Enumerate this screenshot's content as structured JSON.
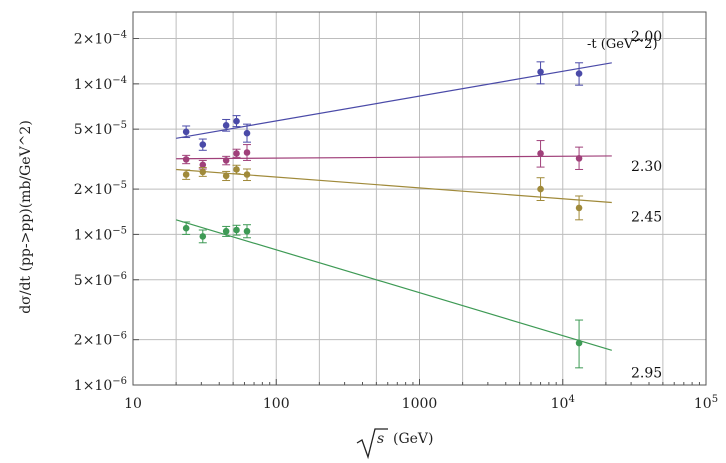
{
  "chart_data": {
    "type": "scatter",
    "title": "",
    "xlabel": "√s (GeV)",
    "ylabel": "dσ/dt (pp->pp)(mb/GeV^2)",
    "xscale": "log",
    "yscale": "log",
    "xlim": [
      10,
      100000
    ],
    "ylim": [
      1e-06,
      0.0003
    ],
    "grid": true,
    "legend_title": "-t (GeV^2)",
    "x_ticks": [
      {
        "value": 10,
        "label": "10"
      },
      {
        "value": 100,
        "label": "100"
      },
      {
        "value": 1000,
        "label": "1000"
      },
      {
        "value": 10000,
        "label": "10",
        "exp": "4"
      },
      {
        "value": 100000,
        "label": "10",
        "exp": "5"
      }
    ],
    "y_ticks": [
      {
        "value": 1e-06,
        "label": "1×10",
        "exp": "−6"
      },
      {
        "value": 2e-06,
        "label": "2×10",
        "exp": "−6"
      },
      {
        "value": 5e-06,
        "label": "5×10",
        "exp": "−6"
      },
      {
        "value": 1e-05,
        "label": "1×10",
        "exp": "−5"
      },
      {
        "value": 2e-05,
        "label": "2×10",
        "exp": "−5"
      },
      {
        "value": 5e-05,
        "label": "5×10",
        "exp": "−5"
      },
      {
        "value": 0.0001,
        "label": "1×10",
        "exp": "−4"
      },
      {
        "value": 0.0002,
        "label": "2×10",
        "exp": "−4"
      }
    ],
    "series": [
      {
        "name": "2.00",
        "color": "#4a4aa8",
        "points": [
          {
            "x": 23.5,
            "y": 4.8e-05,
            "lo": 4.4e-05,
            "hi": 5.25e-05
          },
          {
            "x": 30.7,
            "y": 3.95e-05,
            "lo": 3.62e-05,
            "hi": 4.3e-05
          },
          {
            "x": 44.7,
            "y": 5.3e-05,
            "lo": 4.85e-05,
            "hi": 5.8e-05
          },
          {
            "x": 52.8,
            "y": 5.65e-05,
            "lo": 5.2e-05,
            "hi": 6.15e-05
          },
          {
            "x": 62.5,
            "y": 4.7e-05,
            "lo": 4.1e-05,
            "hi": 5.4e-05
          },
          {
            "x": 7000,
            "y": 0.00012,
            "lo": 0.0001,
            "hi": 0.00014
          },
          {
            "x": 13000,
            "y": 0.000117,
            "lo": 9.8e-05,
            "hi": 0.000138
          }
        ],
        "fit": {
          "x": [
            20,
            22000
          ],
          "y": [
            4.35e-05,
            0.000138
          ]
        }
      },
      {
        "name": "2.30",
        "color": "#a0407a",
        "points": [
          {
            "x": 23.5,
            "y": 3.15e-05,
            "lo": 2.95e-05,
            "hi": 3.35e-05
          },
          {
            "x": 30.7,
            "y": 2.9e-05,
            "lo": 2.72e-05,
            "hi": 3.1e-05
          },
          {
            "x": 44.7,
            "y": 3.1e-05,
            "lo": 2.9e-05,
            "hi": 3.3e-05
          },
          {
            "x": 52.8,
            "y": 3.45e-05,
            "lo": 3.25e-05,
            "hi": 3.68e-05
          },
          {
            "x": 62.5,
            "y": 3.5e-05,
            "lo": 3.1e-05,
            "hi": 3.95e-05
          },
          {
            "x": 7000,
            "y": 3.45e-05,
            "lo": 2.8e-05,
            "hi": 4.2e-05
          },
          {
            "x": 13000,
            "y": 3.2e-05,
            "lo": 2.7e-05,
            "hi": 3.8e-05
          }
        ],
        "fit": {
          "x": [
            20,
            22000
          ],
          "y": [
            3.18e-05,
            3.32e-05
          ]
        }
      },
      {
        "name": "2.45",
        "color": "#a08a3a",
        "points": [
          {
            "x": 23.5,
            "y": 2.5e-05,
            "lo": 2.32e-05,
            "hi": 2.68e-05
          },
          {
            "x": 30.7,
            "y": 2.6e-05,
            "lo": 2.43e-05,
            "hi": 2.78e-05
          },
          {
            "x": 44.7,
            "y": 2.45e-05,
            "lo": 2.28e-05,
            "hi": 2.62e-05
          },
          {
            "x": 52.8,
            "y": 2.7e-05,
            "lo": 2.53e-05,
            "hi": 2.88e-05
          },
          {
            "x": 62.5,
            "y": 2.5e-05,
            "lo": 2.28e-05,
            "hi": 2.72e-05
          },
          {
            "x": 7000,
            "y": 2e-05,
            "lo": 1.68e-05,
            "hi": 2.38e-05
          },
          {
            "x": 13000,
            "y": 1.5e-05,
            "lo": 1.25e-05,
            "hi": 1.8e-05
          }
        ],
        "fit": {
          "x": [
            20,
            22000
          ],
          "y": [
            2.7e-05,
            1.63e-05
          ]
        }
      },
      {
        "name": "2.95",
        "color": "#3e9a55",
        "points": [
          {
            "x": 23.5,
            "y": 1.1e-05,
            "lo": 1e-05,
            "hi": 1.21e-05
          },
          {
            "x": 30.7,
            "y": 9.7e-06,
            "lo": 8.8e-06,
            "hi": 1.07e-05
          },
          {
            "x": 44.7,
            "y": 1.05e-05,
            "lo": 9.7e-06,
            "hi": 1.13e-05
          },
          {
            "x": 52.8,
            "y": 1.07e-05,
            "lo": 9.9e-06,
            "hi": 1.15e-05
          },
          {
            "x": 62.5,
            "y": 1.05e-05,
            "lo": 9.5e-06,
            "hi": 1.16e-05
          },
          {
            "x": 13000,
            "y": 1.9e-06,
            "lo": 1.3e-06,
            "hi": 2.7e-06
          }
        ],
        "fit": {
          "x": [
            20,
            22000
          ],
          "y": [
            1.25e-05,
            1.7e-06
          ]
        }
      }
    ]
  }
}
